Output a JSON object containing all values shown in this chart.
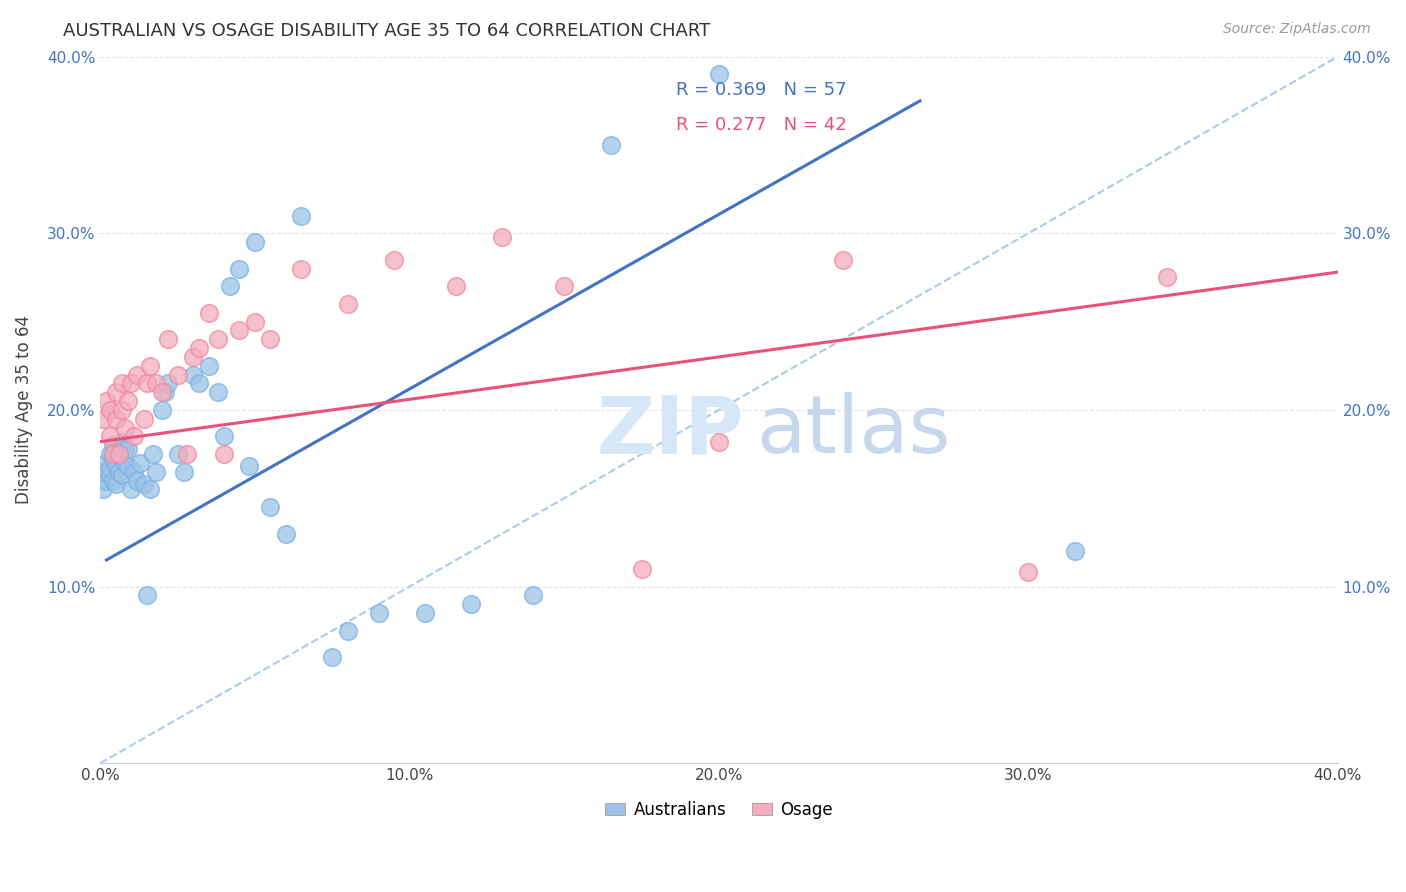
{
  "title": "AUSTRALIAN VS OSAGE DISABILITY AGE 35 TO 64 CORRELATION CHART",
  "source": "Source: ZipAtlas.com",
  "ylabel": "Disability Age 35 to 64",
  "xlim": [
    0.0,
    0.4
  ],
  "ylim": [
    0.0,
    0.4
  ],
  "xtick_labels": [
    "0.0%",
    "",
    "",
    "",
    "",
    "10.0%",
    "",
    "",
    "",
    "",
    "20.0%",
    "",
    "",
    "",
    "",
    "30.0%",
    "",
    "",
    "",
    "",
    "40.0%"
  ],
  "xtick_vals": [
    0.0,
    0.02,
    0.04,
    0.06,
    0.08,
    0.1,
    0.12,
    0.14,
    0.16,
    0.18,
    0.2,
    0.22,
    0.24,
    0.26,
    0.28,
    0.3,
    0.32,
    0.34,
    0.36,
    0.38,
    0.4
  ],
  "ytick_labels": [
    "10.0%",
    "20.0%",
    "30.0%",
    "40.0%"
  ],
  "ytick_vals": [
    0.1,
    0.2,
    0.3,
    0.4
  ],
  "legend_labels": [
    "Australians",
    "Osage"
  ],
  "R_australian": 0.369,
  "N_australian": 57,
  "R_osage": 0.277,
  "N_osage": 42,
  "blue_color": "#9DC3E6",
  "pink_color": "#F4ACBE",
  "blue_edge": "#7EB3E8",
  "pink_edge": "#F08BA0",
  "trend_blue": "#4472C4",
  "trend_pink": "#E8527A",
  "diag_color": "#9DC3E6",
  "watermark_color": "#D6E8F7",
  "background_color": "#FFFFFF",
  "aus_trend_x": [
    0.002,
    0.265
  ],
  "aus_trend_y": [
    0.115,
    0.375
  ],
  "osage_trend_x": [
    0.0,
    0.4
  ],
  "osage_trend_y": [
    0.182,
    0.278
  ],
  "australians_x": [
    0.001,
    0.001,
    0.002,
    0.002,
    0.003,
    0.003,
    0.003,
    0.004,
    0.004,
    0.004,
    0.005,
    0.005,
    0.005,
    0.006,
    0.006,
    0.007,
    0.007,
    0.007,
    0.008,
    0.008,
    0.009,
    0.009,
    0.01,
    0.011,
    0.012,
    0.013,
    0.014,
    0.015,
    0.016,
    0.017,
    0.018,
    0.02,
    0.021,
    0.022,
    0.025,
    0.027,
    0.03,
    0.032,
    0.035,
    0.038,
    0.04,
    0.042,
    0.045,
    0.048,
    0.05,
    0.055,
    0.06,
    0.065,
    0.075,
    0.08,
    0.09,
    0.105,
    0.12,
    0.14,
    0.165,
    0.2,
    0.315
  ],
  "australians_y": [
    0.155,
    0.165,
    0.16,
    0.17,
    0.163,
    0.167,
    0.175,
    0.16,
    0.172,
    0.18,
    0.158,
    0.168,
    0.177,
    0.165,
    0.175,
    0.163,
    0.172,
    0.182,
    0.17,
    0.178,
    0.168,
    0.178,
    0.155,
    0.165,
    0.16,
    0.17,
    0.158,
    0.095,
    0.155,
    0.175,
    0.165,
    0.2,
    0.21,
    0.215,
    0.175,
    0.165,
    0.22,
    0.215,
    0.225,
    0.21,
    0.185,
    0.27,
    0.28,
    0.168,
    0.295,
    0.145,
    0.13,
    0.31,
    0.06,
    0.075,
    0.085,
    0.085,
    0.09,
    0.095,
    0.35,
    0.39,
    0.12
  ],
  "osage_x": [
    0.001,
    0.002,
    0.003,
    0.003,
    0.004,
    0.005,
    0.005,
    0.006,
    0.007,
    0.007,
    0.008,
    0.009,
    0.01,
    0.011,
    0.012,
    0.014,
    0.015,
    0.016,
    0.018,
    0.02,
    0.022,
    0.025,
    0.028,
    0.03,
    0.032,
    0.035,
    0.038,
    0.04,
    0.045,
    0.05,
    0.055,
    0.065,
    0.08,
    0.095,
    0.115,
    0.13,
    0.15,
    0.175,
    0.2,
    0.24,
    0.3,
    0.345
  ],
  "osage_y": [
    0.195,
    0.205,
    0.185,
    0.2,
    0.175,
    0.195,
    0.21,
    0.175,
    0.2,
    0.215,
    0.19,
    0.205,
    0.215,
    0.185,
    0.22,
    0.195,
    0.215,
    0.225,
    0.215,
    0.21,
    0.24,
    0.22,
    0.175,
    0.23,
    0.235,
    0.255,
    0.24,
    0.175,
    0.245,
    0.25,
    0.24,
    0.28,
    0.26,
    0.285,
    0.27,
    0.298,
    0.27,
    0.11,
    0.182,
    0.285,
    0.108,
    0.275
  ]
}
